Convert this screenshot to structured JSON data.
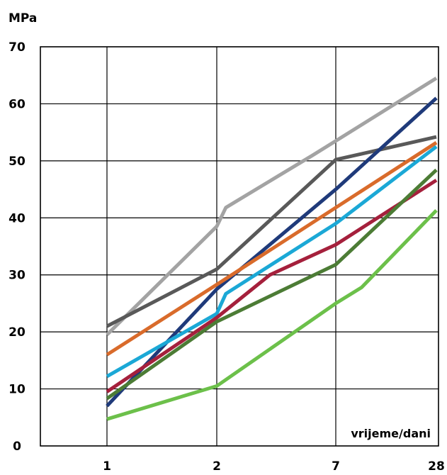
{
  "chart_data": {
    "type": "line",
    "ylabel": "MPa",
    "xlabel": "vrijeme/dani",
    "categories": [
      "1",
      "2",
      "7",
      "28"
    ],
    "y_ticks": [
      "0",
      "10",
      "20",
      "30",
      "40",
      "50",
      "60",
      "70"
    ],
    "ylim": [
      0,
      70
    ],
    "grid": true,
    "series": [
      {
        "color": "#a3a3a3",
        "x": [
          1,
          2,
          2.2,
          5.5,
          7,
          28
        ],
        "y": [
          19.5,
          38.5,
          41.8,
          51.0,
          53.5,
          64.5
        ]
      },
      {
        "color": "#595959",
        "x": [
          1,
          2,
          7,
          28
        ],
        "y": [
          21.0,
          31.0,
          50.2,
          54.2
        ]
      },
      {
        "color": "#1f3a7a",
        "x": [
          1,
          2,
          7,
          28
        ],
        "y": [
          7.0,
          27.5,
          45.0,
          61.0
        ]
      },
      {
        "color": "#d96b2b",
        "x": [
          1,
          2,
          7,
          28
        ],
        "y": [
          16.0,
          28.3,
          41.8,
          53.2
        ]
      },
      {
        "color": "#1ba8d6",
        "x": [
          1,
          2,
          2.2,
          7,
          28
        ],
        "y": [
          12.2,
          23.2,
          26.7,
          39.0,
          52.5
        ]
      },
      {
        "color": "#a5203c",
        "x": [
          1,
          2,
          3.5,
          7,
          28
        ],
        "y": [
          9.5,
          22.5,
          30.0,
          35.3,
          46.6
        ]
      },
      {
        "color": "#4c7c35",
        "x": [
          1,
          2,
          7,
          28
        ],
        "y": [
          8.3,
          21.8,
          31.8,
          48.4
        ]
      },
      {
        "color": "#6cc04a",
        "x": [
          1,
          2,
          7,
          10,
          28
        ],
        "y": [
          4.7,
          10.5,
          25.0,
          27.8,
          41.3
        ]
      }
    ]
  }
}
